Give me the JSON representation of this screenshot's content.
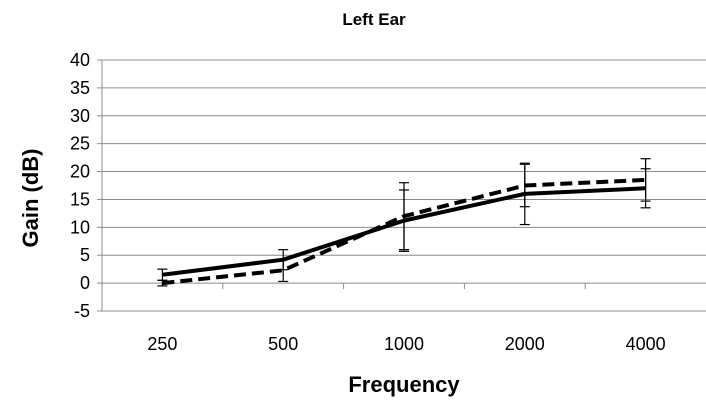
{
  "chart_data": {
    "type": "line",
    "title": "Left Ear",
    "xlabel": "Frequency",
    "ylabel": "Gain (dB)",
    "categories": [
      "250",
      "500",
      "1000",
      "2000",
      "4000"
    ],
    "ylim": [
      -5,
      40
    ],
    "yticks": [
      -5,
      0,
      5,
      10,
      15,
      20,
      25,
      30,
      35,
      40
    ],
    "grid": "horizontal",
    "legend": "none",
    "series": [
      {
        "style": "solid",
        "color": "#000000",
        "values": [
          1.5,
          4.2,
          11.2,
          16.0,
          17.0
        ],
        "error": [
          1.0,
          1.8,
          5.5,
          5.5,
          3.5
        ]
      },
      {
        "style": "dashed",
        "color": "#000000",
        "values": [
          0.0,
          2.3,
          12.0,
          17.5,
          18.5
        ],
        "error": [
          0.5,
          2.0,
          6.0,
          3.8,
          3.8
        ]
      }
    ]
  }
}
